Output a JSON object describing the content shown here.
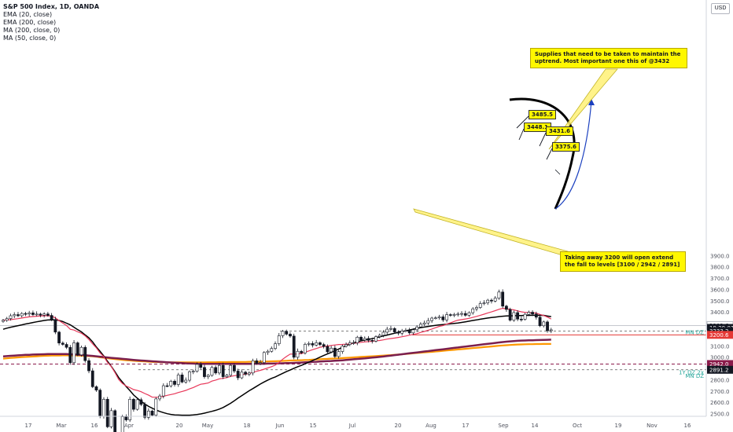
{
  "header": {
    "title": "S&P 500 Index, 1D, OANDA",
    "indicators": [
      "EMA (20, close)",
      "EMA (200, close)",
      "MA (200, close, 0)",
      "MA (50, close, 0)"
    ],
    "currency": "USD"
  },
  "annotations": {
    "note_top": "Supplies that need to be taken to maintain the uptrend. Most important one this of @3432",
    "note_bottom": "Taking away 3200 will open extend the fall to levels [3100 / 2942 / 2891]",
    "level_labels": [
      "3485.5",
      "3448.1",
      "3431.6",
      "3375.6"
    ],
    "zone_labels": [
      "MN DZ",
      "1Y DZ 2x",
      "MN DZ"
    ]
  },
  "price_tags": [
    {
      "value": "3283.6",
      "color": "#787b86"
    },
    {
      "value": "19:29:01",
      "color": "#ffffff"
    },
    {
      "value": "3233.2",
      "color": "#ffffff"
    },
    {
      "value": "3200.6",
      "color": "#e53935"
    },
    {
      "value": "2942.0",
      "color": "#8b1a4a"
    },
    {
      "value": "2891.2",
      "color": "#131722"
    }
  ],
  "chart_data": {
    "type": "candlestick",
    "title": "S&P 500 Index, 1D, OANDA",
    "ylim": [
      2480,
      3900
    ],
    "y_ticks": [
      2500,
      2600,
      2700,
      2800,
      2900,
      3000,
      3100,
      3200,
      3300,
      3400,
      3500,
      3600,
      3700,
      3800,
      3900
    ],
    "x_ticks": [
      "17",
      "Mar",
      "16",
      "Apr",
      "20",
      "May",
      "18",
      "Jun",
      "15",
      "Jul",
      "20",
      "Aug",
      "17",
      "Sep",
      "14",
      "Oct",
      "19",
      "Nov",
      "16"
    ],
    "series": [
      {
        "name": "S&P 500",
        "key": "close",
        "color": "#131722"
      },
      {
        "name": "EMA (20, close)",
        "color": "#e8385a"
      },
      {
        "name": "EMA (200, close)",
        "color": "#ff9800"
      },
      {
        "name": "MA (200, close, 0)",
        "color": "#7b1f4e"
      },
      {
        "name": "MA (50, close, 0)",
        "color": "#000000"
      }
    ],
    "closes": [
      3330,
      3345,
      3370,
      3380,
      3370,
      3390,
      3385,
      3395,
      3380,
      3385,
      3375,
      3386,
      3373,
      3337,
      3225,
      3128,
      3116,
      3090,
      2954,
      3130,
      3023,
      3090,
      2972,
      2882,
      2741,
      2711,
      2480,
      2630,
      2386,
      2529,
      2304,
      2237,
      2475,
      2447,
      2630,
      2541,
      2626,
      2584,
      2470,
      2526,
      2489,
      2633,
      2659,
      2750,
      2749,
      2790,
      2761,
      2846,
      2783,
      2799,
      2874,
      2878,
      2939,
      2912,
      2830,
      2842,
      2912,
      2863,
      2930,
      2830,
      2843,
      2930,
      2880,
      2820,
      2870,
      2852,
      2863,
      2971,
      2948,
      2955,
      3044,
      3055,
      3080,
      3122,
      3193,
      3232,
      3207,
      3190,
      3002,
      3055,
      3041,
      3117,
      3124,
      3110,
      3131,
      3115,
      3098,
      3050,
      3083,
      3009,
      3053,
      3100,
      3115,
      3130,
      3130,
      3180,
      3155,
      3169,
      3152,
      3145,
      3185,
      3197,
      3224,
      3251,
      3257,
      3226,
      3215,
      3235,
      3239,
      3218,
      3246,
      3271,
      3295,
      3306,
      3327,
      3349,
      3351,
      3360,
      3333,
      3380,
      3373,
      3381,
      3385,
      3390,
      3374,
      3397,
      3431,
      3443,
      3478,
      3484,
      3508,
      3500,
      3526,
      3580,
      3455,
      3426,
      3331,
      3398,
      3340,
      3339,
      3383,
      3401,
      3385,
      3357,
      3281,
      3315,
      3237,
      3245
    ],
    "ema20": [
      3330,
      3332,
      3335,
      3340,
      3344,
      3350,
      3355,
      3360,
      3363,
      3366,
      3368,
      3370,
      3370,
      3367,
      3351,
      3327,
      3306,
      3283,
      3250,
      3243,
      3227,
      3215,
      3192,
      3160,
      3120,
      3085,
      3040,
      3008,
      2956,
      2920,
      2866,
      2805,
      2769,
      2747,
      2733,
      2716,
      2708,
      2697,
      2681,
      2666,
      2649,
      2648,
      2648,
      2656,
      2665,
      2672,
      2679,
      2690,
      2699,
      2709,
      2722,
      2734,
      2749,
      2763,
      2768,
      2774,
      2791,
      2800,
      2811,
      2815,
      2822,
      2832,
      2839,
      2843,
      2848,
      2853,
      2858,
      2869,
      2878,
      2886,
      2897,
      2908,
      2919,
      2932,
      2956,
      2985,
      3009,
      3030,
      3030,
      3032,
      3035,
      3046,
      3058,
      3069,
      3080,
      3090,
      3097,
      3102,
      3107,
      3111,
      3115,
      3116,
      3118,
      3121,
      3126,
      3129,
      3135,
      3138,
      3141,
      3144,
      3148,
      3151,
      3156,
      3163,
      3168,
      3172,
      3178,
      3184,
      3190,
      3198,
      3204,
      3211,
      3222,
      3231,
      3242,
      3252,
      3264,
      3276,
      3283,
      3296,
      3307,
      3320,
      3331,
      3336,
      3341,
      3347,
      3355,
      3364,
      3374,
      3384,
      3395,
      3404,
      3415,
      3427,
      3435,
      3432,
      3427,
      3422,
      3413,
      3405,
      3400,
      3400,
      3397,
      3393,
      3382,
      3372,
      3358,
      3341
    ],
    "ma50": [
      3250,
      3260,
      3268,
      3275,
      3282,
      3289,
      3297,
      3303,
      3310,
      3316,
      3322,
      3328,
      3332,
      3333,
      3333,
      3328,
      3319,
      3304,
      3290,
      3268,
      3247,
      3227,
      3200,
      3175,
      3138,
      3093,
      3055,
      3013,
      2966,
      2922,
      2874,
      2822,
      2782,
      2743,
      2707,
      2668,
      2640,
      2612,
      2589,
      2567,
      2551,
      2535,
      2522,
      2512,
      2502,
      2496,
      2491,
      2490,
      2489,
      2489,
      2489,
      2491,
      2495,
      2500,
      2507,
      2515,
      2523,
      2532,
      2543,
      2557,
      2575,
      2594,
      2616,
      2640,
      2662,
      2684,
      2705,
      2725,
      2745,
      2765,
      2783,
      2800,
      2815,
      2828,
      2844,
      2860,
      2875,
      2889,
      2904,
      2918,
      2930,
      2944,
      2958,
      2973,
      2988,
      3003,
      3018,
      3032,
      3045,
      3060,
      3075,
      3090,
      3105,
      3118,
      3131,
      3139,
      3148,
      3155,
      3161,
      3167,
      3175,
      3183,
      3191,
      3199,
      3207,
      3215,
      3223,
      3230,
      3237,
      3244,
      3251,
      3258,
      3264,
      3270,
      3275,
      3280,
      3285,
      3289,
      3292,
      3295,
      3298,
      3302,
      3306,
      3311,
      3316,
      3322,
      3328,
      3333,
      3339,
      3345,
      3350,
      3354,
      3358,
      3362,
      3366,
      3368,
      3369,
      3370,
      3371,
      3372,
      3373,
      3373,
      3374,
      3374,
      3373,
      3373,
      3367,
      3362
    ],
    "ema200": [
      2990,
      2993,
      2996,
      2998,
      3001,
      3003,
      3005,
      3007,
      3009,
      3011,
      3013,
      3015,
      3016,
      3017,
      3018,
      3018,
      3019,
      3019,
      3018,
      3018,
      3017,
      3016,
      3014,
      3012,
      3010,
      3007,
      3002,
      2998,
      2994,
      2990,
      2986,
      2982,
      2979,
      2976,
      2974,
      2971,
      2969,
      2967,
      2965,
      2963,
      2961,
      2960,
      2959,
      2958,
      2958,
      2957,
      2957,
      2957,
      2957,
      2957,
      2957,
      2957,
      2957,
      2957,
      2957,
      2958,
      2958,
      2958,
      2959,
      2959,
      2959,
      2960,
      2960,
      2960,
      2961,
      2961,
      2962,
      2962,
      2963,
      2963,
      2964,
      2965,
      2966,
      2967,
      2968,
      2970,
      2971,
      2973,
      2974,
      2975,
      2976,
      2978,
      2979,
      2981,
      2983,
      2985,
      2987,
      2988,
      2990,
      2991,
      2993,
      2995,
      2997,
      2999,
      3001,
      3003,
      3005,
      3007,
      3009,
      3011,
      3013,
      3015,
      3017,
      3019,
      3021,
      3024,
      3026,
      3029,
      3031,
      3034,
      3037,
      3040,
      3043,
      3045,
      3048,
      3050,
      3053,
      3056,
      3059,
      3062,
      3065,
      3068,
      3071,
      3074,
      3077,
      3080,
      3083,
      3086,
      3089,
      3092,
      3095,
      3098,
      3101,
      3104,
      3107,
      3109,
      3111,
      3113,
      3115,
      3116,
      3117,
      3118,
      3118,
      3119,
      3119,
      3120,
      3120,
      3120
    ],
    "ma200": [
      3010,
      3012,
      3015,
      3017,
      3019,
      3021,
      3023,
      3024,
      3026,
      3027,
      3028,
      3029,
      3030,
      3031,
      3031,
      3031,
      3031,
      3030,
      3029,
      3027,
      3025,
      3023,
      3020,
      3017,
      3014,
      3011,
      3007,
      3004,
      3000,
      2997,
      2994,
      2991,
      2988,
      2985,
      2982,
      2979,
      2976,
      2973,
      2971,
      2969,
      2966,
      2964,
      2962,
      2960,
      2958,
      2956,
      2954,
      2952,
      2950,
      2948,
      2947,
      2946,
      2945,
      2944,
      2944,
      2943,
      2943,
      2943,
      2943,
      2943,
      2943,
      2943,
      2943,
      2943,
      2944,
      2944,
      2944,
      2944,
      2945,
      2945,
      2945,
      2946,
      2946,
      2947,
      2948,
      2949,
      2950,
      2951,
      2952,
      2954,
      2955,
      2957,
      2959,
      2961,
      2962,
      2964,
      2966,
      2968,
      2969,
      2971,
      2973,
      2975,
      2978,
      2981,
      2984,
      2987,
      2990,
      2993,
      2996,
      2999,
      3002,
      3005,
      3009,
      3013,
      3017,
      3021,
      3025,
      3029,
      3033,
      3037,
      3041,
      3045,
      3049,
      3053,
      3057,
      3061,
      3065,
      3069,
      3073,
      3077,
      3081,
      3085,
      3089,
      3093,
      3097,
      3101,
      3105,
      3109,
      3113,
      3117,
      3121,
      3125,
      3129,
      3133,
      3137,
      3140,
      3143,
      3146,
      3148,
      3150,
      3151,
      3152,
      3153,
      3154,
      3155,
      3156,
      3157,
      3158
    ],
    "levels": [
      {
        "label": "MN DZ",
        "value": 3233.2,
        "style": "dashed"
      },
      {
        "label": "3200",
        "value": 3200.6,
        "style": "solid-red"
      },
      {
        "label": "1Y DZ 2x",
        "value": 2942.0,
        "style": "dashed-red"
      },
      {
        "label": "MN DZ",
        "value": 2891.2,
        "style": "dashed"
      }
    ]
  }
}
